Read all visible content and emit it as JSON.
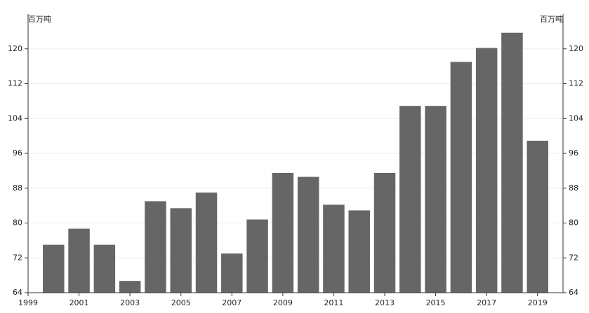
{
  "chart_data": {
    "type": "bar",
    "y_label": "百万吨",
    "x": [
      2000,
      2001,
      2002,
      2003,
      2004,
      2005,
      2006,
      2007,
      2008,
      2009,
      2010,
      2011,
      2012,
      2013,
      2014,
      2015,
      2016,
      2017,
      2018,
      2019
    ],
    "values": [
      75.0,
      78.7,
      75.0,
      66.7,
      85.0,
      83.4,
      87.0,
      73.0,
      80.8,
      91.5,
      90.6,
      84.2,
      82.9,
      91.5,
      106.9,
      106.9,
      117.0,
      120.2,
      123.7,
      98.9
    ],
    "color": "#666666",
    "xlim": [
      1999,
      2020
    ],
    "xticks": [
      1999,
      2001,
      2003,
      2005,
      2007,
      2009,
      2011,
      2013,
      2015,
      2017,
      2019
    ],
    "ylim": [
      64,
      128
    ],
    "yticks": [
      64,
      72,
      80,
      88,
      96,
      104,
      112,
      120
    ],
    "y2lim": [
      64,
      128
    ],
    "y2ticks": [
      64,
      72,
      80,
      88,
      96,
      104,
      112,
      120
    ],
    "grid": true
  }
}
